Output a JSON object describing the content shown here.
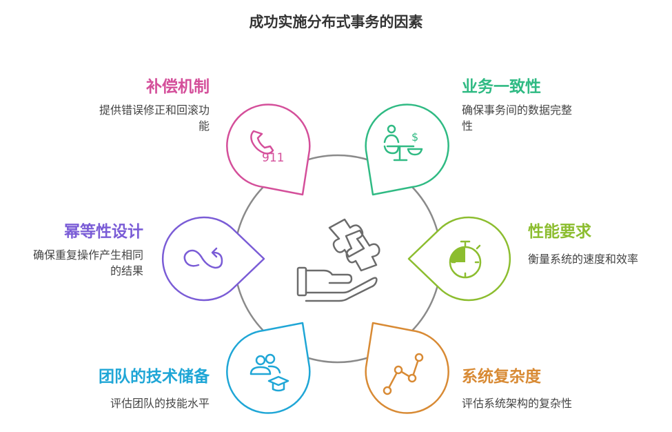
{
  "title": "成功实施分布式事务的因素",
  "factors": [
    {
      "key": "compensation",
      "heading": "补偿机制",
      "desc_lines": [
        "提供错误修正和回滚功",
        "能"
      ],
      "color": "#d44f9a",
      "icon": "phone-911-icon",
      "icon_text": "911"
    },
    {
      "key": "consistency",
      "heading": "业务一致性",
      "desc_lines": [
        "确保事务间的数据完整",
        "性"
      ],
      "color": "#2fba83",
      "icon": "balance-scale-icon",
      "icon_text": "$"
    },
    {
      "key": "idempotency",
      "heading": "幂等性设计",
      "desc_lines": [
        "确保重复操作产生相同",
        "的结果"
      ],
      "color": "#7a5cd6",
      "icon": "loop-arrow-icon"
    },
    {
      "key": "performance",
      "heading": "性能要求",
      "desc_lines": [
        "衡量系统的速度和效率"
      ],
      "color": "#8cbd2f",
      "icon": "stopwatch-icon"
    },
    {
      "key": "team",
      "heading": "团队的技术储备",
      "desc_lines": [
        "评估团队的技能水平"
      ],
      "color": "#1fa6d6",
      "icon": "team-graduation-icon"
    },
    {
      "key": "complexity",
      "heading": "系统复杂度",
      "desc_lines": [
        "评估系统架构的复杂性"
      ],
      "color": "#d88a34",
      "icon": "line-graph-icon"
    }
  ],
  "center_icon": "hand-puzzle-icon"
}
